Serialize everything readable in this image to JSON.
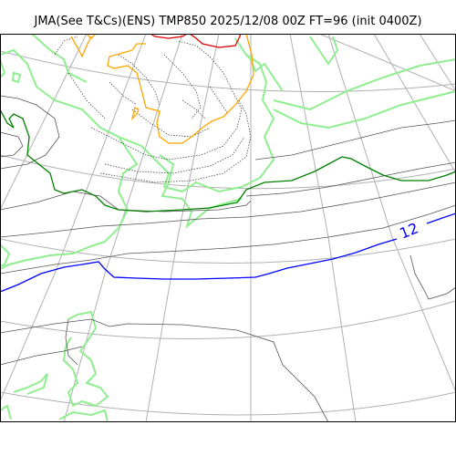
{
  "title": "JMA(See T&Cs)(ENS) TMP850 2025/12/08 00Z FT=96 (init 0400Z)",
  "contour_labels": [
    {
      "text": "12",
      "color": "#0000ff"
    }
  ],
  "colors": {
    "coastline": "#90ee90",
    "graticule": "#b0b0b0",
    "isotherm_thin": "#555555",
    "isotherm_dotted": "#333333",
    "isotherm_green": "#008000",
    "isotherm_blue": "#0000ff",
    "isotherm_orange": "#ffa500",
    "isotherm_red": "#e00000",
    "frame": "#000000"
  }
}
